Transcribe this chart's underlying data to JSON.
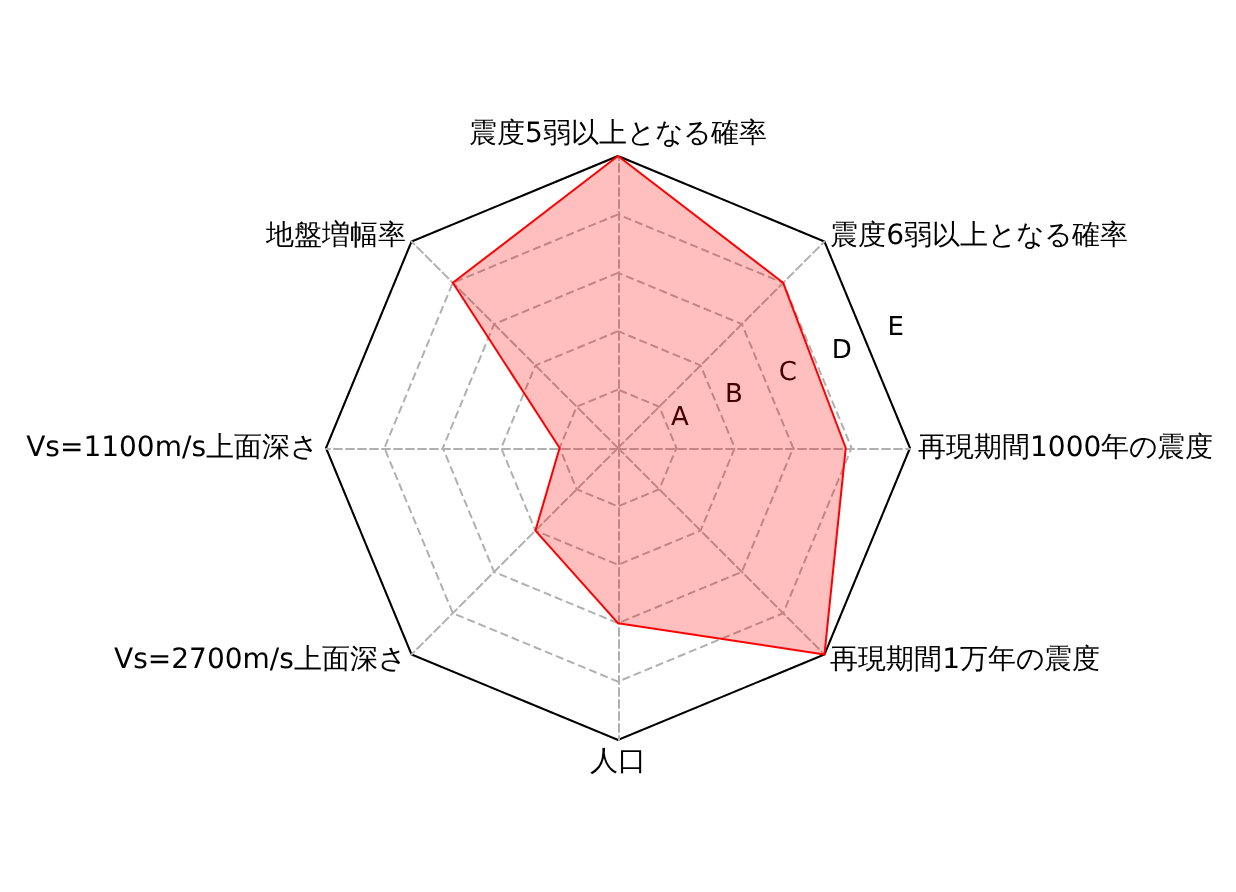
{
  "chart_data": {
    "type": "radar",
    "categories": [
      "震度5弱以上となる確率",
      "震度6弱以上となる確率",
      "再現期間1000年の震度",
      "再現期間1万年の震度",
      "人口",
      "Vs=2700m/s上面深さ",
      "Vs=1100m/s上面深さ",
      "地盤増幅率"
    ],
    "series": [
      {
        "color": "#ff0000",
        "values": [
          5,
          4,
          3.9,
          5,
          3,
          2,
          1,
          4
        ]
      }
    ],
    "ylim": [
      0,
      5
    ],
    "yticks": [
      {
        "value": 1,
        "label": "A"
      },
      {
        "value": 2,
        "label": "B"
      },
      {
        "value": 3,
        "label": "C"
      },
      {
        "value": 4,
        "label": "D"
      },
      {
        "value": 5,
        "label": "E"
      }
    ],
    "grid": true,
    "marker": "none",
    "line_style": "solid"
  }
}
